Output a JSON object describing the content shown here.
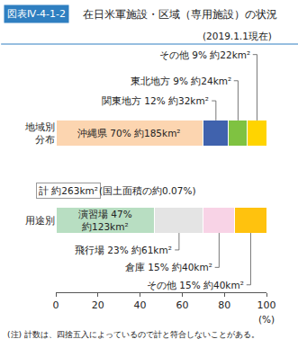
{
  "chart_data": {
    "type": "bar",
    "orientation": "horizontal",
    "stacked": true,
    "data_labels": true,
    "grid": false,
    "title": "図表Ⅳ-4-1-2　在日米軍施設・区域（専用施設）の状況",
    "subtitle": "(2019.1.1現在)",
    "xlabel": "(%)",
    "categories": [
      "地域別\n分布",
      "用途別"
    ],
    "series": [
      {
        "name": "沖縄県",
        "color": "#fcd5b0",
        "values": [
          70,
          null
        ],
        "value_labels": [
          "沖縄県 70% 約185km²",
          null
        ]
      },
      {
        "name": "関東地方",
        "color": "#4062ad",
        "values": [
          12,
          null
        ],
        "value_labels": [
          "関東地方 12% 約32km²",
          null
        ]
      },
      {
        "name": "東北地方",
        "color": "#7fc241",
        "values": [
          9,
          null
        ],
        "value_labels": [
          "東北地方 9% 約24km²",
          null
        ]
      },
      {
        "name": "その他",
        "color": "#ffd400",
        "values": [
          9,
          null
        ],
        "value_labels": [
          "その他 9% 約22km²",
          null
        ]
      },
      {
        "name": "演習場",
        "color": "#b8dec2",
        "values": [
          null,
          47
        ],
        "value_labels": [
          null,
          "演習場 47%\n約123km²"
        ]
      },
      {
        "name": "飛行場",
        "color": "#e4e4e4",
        "values": [
          null,
          23
        ],
        "value_labels": [
          null,
          "飛行場 23% 約61km²"
        ]
      },
      {
        "name": "倉庫",
        "color": "#f8d3e6",
        "values": [
          null,
          15
        ],
        "value_labels": [
          null,
          "倉庫 15% 約40km²"
        ]
      },
      {
        "name": "その他",
        "color": "#ffc20e",
        "values": [
          null,
          15
        ],
        "value_labels": [
          null,
          "その他 15% 約40km²"
        ]
      }
    ],
    "annotations": [
      "計 約263km²",
      "(国土面積の約0.07%)"
    ],
    "note": "(注) 計数は、四捨五入によっているので計と符合しないことがある。",
    "xlim": [
      0,
      100
    ],
    "xticks": [
      0,
      20,
      40,
      60,
      80,
      100
    ]
  }
}
